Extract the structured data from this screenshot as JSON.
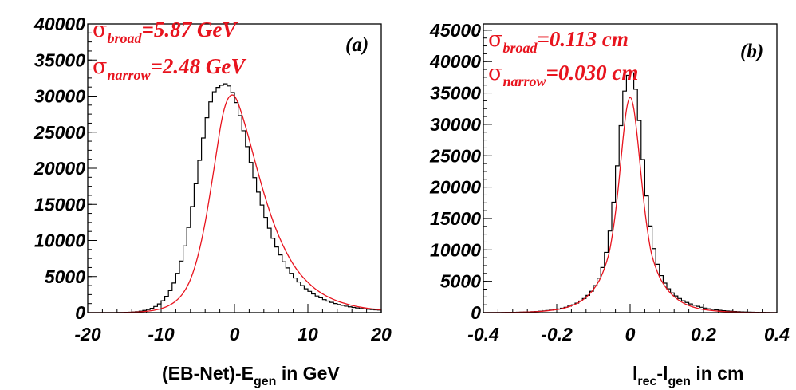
{
  "chart_data": [
    {
      "type": "histogram",
      "panel_label": "(a)",
      "xlabel_parts": {
        "main": "(EB-Net)-E",
        "sub": "gen",
        "tail": " in GeV"
      },
      "ylabel": "",
      "xlim": [
        -20,
        20
      ],
      "ylim": [
        0,
        40000
      ],
      "xticks": [
        -20,
        -10,
        0,
        10,
        20
      ],
      "xtick_labels": [
        "-20",
        "-10",
        "0",
        "10",
        "20"
      ],
      "yticks": [
        0,
        5000,
        10000,
        15000,
        20000,
        25000,
        30000,
        35000,
        40000
      ],
      "ytick_labels": [
        "0",
        "5000",
        "10000",
        "15000",
        "20000",
        "25000",
        "30000",
        "35000",
        "40000"
      ],
      "annotations": [
        {
          "symbol": "σ",
          "sub": "broad",
          "text": "=5.87 GeV"
        },
        {
          "symbol": "σ",
          "sub": "narrow",
          "text": "=2.48 GeV"
        }
      ],
      "histogram": {
        "bin_width": 0.5,
        "x": [
          -19.75,
          -19.25,
          -18.75,
          -18.25,
          -17.75,
          -17.25,
          -16.75,
          -16.25,
          -15.75,
          -15.25,
          -14.75,
          -14.25,
          -13.75,
          -13.25,
          -12.75,
          -12.25,
          -11.75,
          -11.25,
          -10.75,
          -10.25,
          -9.75,
          -9.25,
          -8.75,
          -8.25,
          -7.75,
          -7.25,
          -6.75,
          -6.25,
          -5.75,
          -5.25,
          -4.75,
          -4.25,
          -3.75,
          -3.25,
          -2.75,
          -2.25,
          -1.75,
          -1.25,
          -0.75,
          -0.25,
          0.25,
          0.75,
          1.25,
          1.75,
          2.25,
          2.75,
          3.25,
          3.75,
          4.25,
          4.75,
          5.25,
          5.75,
          6.25,
          6.75,
          7.25,
          7.75,
          8.25,
          8.75,
          9.25,
          9.75,
          10.25,
          10.75,
          11.25,
          11.75,
          12.25,
          12.75,
          13.25,
          13.75,
          14.25,
          14.75,
          15.25,
          15.75,
          16.25,
          16.75,
          17.25,
          17.75,
          18.25,
          18.75,
          19.25,
          19.75
        ],
        "values": [
          0,
          0,
          0,
          0,
          0,
          0,
          0,
          0,
          10,
          20,
          40,
          60,
          90,
          130,
          200,
          300,
          430,
          600,
          850,
          1200,
          1650,
          2250,
          3050,
          4100,
          5450,
          7150,
          9250,
          11800,
          14700,
          17850,
          21100,
          24200,
          27000,
          29200,
          30600,
          31200,
          31500,
          31700,
          31400,
          30500,
          29100,
          27300,
          25200,
          23000,
          20800,
          18700,
          16700,
          14900,
          13200,
          11700,
          10300,
          9100,
          8000,
          7050,
          6200,
          5450,
          4800,
          4250,
          3750,
          3300,
          2950,
          2600,
          2300,
          2050,
          1800,
          1600,
          1420,
          1260,
          1120,
          1000,
          890,
          800,
          710,
          640,
          570,
          510,
          460,
          420,
          380,
          350
        ]
      },
      "fit": {
        "x": [
          -20,
          -19,
          -18,
          -17,
          -16,
          -15,
          -14,
          -13,
          -12,
          -11,
          -10,
          -9,
          -8,
          -7,
          -6,
          -5,
          -4,
          -3,
          -2,
          -1.5,
          -1,
          -0.5,
          0,
          0.5,
          1,
          1.5,
          2,
          3,
          4,
          5,
          6,
          7,
          8,
          9,
          10,
          11,
          12,
          13,
          14,
          15,
          16,
          17,
          18,
          19,
          20
        ],
        "values": [
          0,
          0,
          0,
          0,
          0,
          20,
          50,
          100,
          180,
          320,
          550,
          950,
          1600,
          2700,
          4600,
          7800,
          12500,
          18600,
          25200,
          27800,
          29400,
          30100,
          30000,
          29000,
          27500,
          25800,
          24000,
          20200,
          16600,
          13400,
          10700,
          8500,
          6700,
          5300,
          4200,
          3300,
          2600,
          2050,
          1620,
          1280,
          1000,
          790,
          620,
          490,
          380
        ]
      }
    },
    {
      "type": "histogram",
      "panel_label": "(b)",
      "xlabel_parts": {
        "pre": "l",
        "pre_sub": "rec",
        "mid": "-l",
        "mid_sub": "gen",
        "tail": " in cm"
      },
      "ylabel": "",
      "xlim": [
        -0.4,
        0.4
      ],
      "ylim": [
        0,
        46000
      ],
      "xticks": [
        -0.4,
        -0.2,
        0,
        0.2,
        0.4
      ],
      "xtick_labels": [
        "-0.4",
        "-0.2",
        "0",
        "0.2",
        "0.4"
      ],
      "yticks": [
        0,
        5000,
        10000,
        15000,
        20000,
        25000,
        30000,
        35000,
        40000,
        45000
      ],
      "ytick_labels": [
        "0",
        "5000",
        "10000",
        "15000",
        "20000",
        "25000",
        "30000",
        "35000",
        "40000",
        "45000"
      ],
      "annotations": [
        {
          "symbol": "σ",
          "sub": "broad",
          "text": "=0.113 cm"
        },
        {
          "symbol": "σ",
          "sub": "narrow",
          "text": "=0.030 cm"
        }
      ],
      "histogram": {
        "bin_width": 0.01,
        "x": [
          -0.395,
          -0.385,
          -0.375,
          -0.365,
          -0.355,
          -0.345,
          -0.335,
          -0.325,
          -0.315,
          -0.305,
          -0.295,
          -0.285,
          -0.275,
          -0.265,
          -0.255,
          -0.245,
          -0.235,
          -0.225,
          -0.215,
          -0.205,
          -0.195,
          -0.185,
          -0.175,
          -0.165,
          -0.155,
          -0.145,
          -0.135,
          -0.125,
          -0.115,
          -0.105,
          -0.095,
          -0.085,
          -0.075,
          -0.065,
          -0.055,
          -0.045,
          -0.035,
          -0.025,
          -0.015,
          -0.005,
          0.005,
          0.015,
          0.025,
          0.035,
          0.045,
          0.055,
          0.065,
          0.075,
          0.085,
          0.095,
          0.105,
          0.115,
          0.125,
          0.135,
          0.145,
          0.155,
          0.165,
          0.175,
          0.185,
          0.195,
          0.205,
          0.215,
          0.225,
          0.235,
          0.245,
          0.255,
          0.265,
          0.275,
          0.285,
          0.295,
          0.305,
          0.315,
          0.325,
          0.335,
          0.345,
          0.355,
          0.365,
          0.375,
          0.385,
          0.395
        ],
        "values": [
          0,
          0,
          0,
          0,
          10,
          20,
          30,
          40,
          50,
          60,
          80,
          100,
          120,
          150,
          180,
          220,
          270,
          330,
          400,
          480,
          580,
          700,
          850,
          1030,
          1250,
          1520,
          1850,
          2250,
          2750,
          3400,
          4300,
          5500,
          7200,
          9600,
          13000,
          17600,
          23400,
          29800,
          35300,
          37800,
          38200,
          35600,
          30600,
          24400,
          18600,
          13800,
          10200,
          7700,
          5900,
          4700,
          3800,
          3150,
          2650,
          2250,
          1900,
          1620,
          1380,
          1170,
          1000,
          850,
          720,
          610,
          520,
          440,
          370,
          310,
          260,
          220,
          180,
          150,
          120,
          100,
          80,
          60,
          50,
          40,
          30,
          20,
          10,
          0
        ]
      },
      "fit": {
        "x": [
          -0.4,
          -0.35,
          -0.3,
          -0.25,
          -0.2,
          -0.18,
          -0.16,
          -0.14,
          -0.12,
          -0.1,
          -0.08,
          -0.06,
          -0.05,
          -0.04,
          -0.03,
          -0.02,
          -0.01,
          0,
          0.01,
          0.02,
          0.03,
          0.04,
          0.05,
          0.06,
          0.08,
          0.1,
          0.12,
          0.14,
          0.16,
          0.18,
          0.2,
          0.25,
          0.3,
          0.35,
          0.4
        ],
        "values": [
          0,
          20,
          60,
          170,
          480,
          720,
          1080,
          1620,
          2450,
          3700,
          5600,
          8900,
          11800,
          15900,
          21200,
          27300,
          32300,
          34300,
          32500,
          27800,
          21900,
          16400,
          12100,
          9000,
          5700,
          3800,
          2550,
          1700,
          1130,
          750,
          500,
          180,
          60,
          20,
          0
        ]
      }
    }
  ]
}
